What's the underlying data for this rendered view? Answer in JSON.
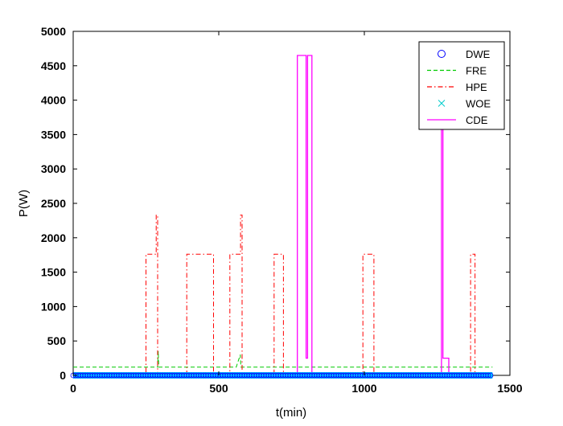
{
  "chart_data": {
    "type": "line",
    "xlabel": "t(min)",
    "ylabel": "P(W)",
    "xlim": [
      0,
      1500
    ],
    "ylim": [
      0,
      5000
    ],
    "xticks": [
      0,
      500,
      1000,
      1500
    ],
    "yticks": [
      0,
      500,
      1000,
      1500,
      2000,
      2500,
      3000,
      3500,
      4000,
      4500,
      5000
    ],
    "xtick_labels": [
      "0",
      "500",
      "1000",
      "1500"
    ],
    "ytick_labels": [
      "0",
      "500",
      "1000",
      "1500",
      "2000",
      "2500",
      "3000",
      "3500",
      "4000",
      "4500",
      "5000"
    ],
    "legend_position": "top-right",
    "grid": false,
    "series": [
      {
        "name": "DWE",
        "color": "#0000ff",
        "style": "markers-circle",
        "note_values": "constant 0 W across 0–1440 min",
        "x": [
          0,
          1440
        ],
        "y": [
          0,
          0
        ]
      },
      {
        "name": "FRE",
        "color": "#00cc00",
        "style": "dashed",
        "x": [
          0,
          250,
          290,
          292,
          294,
          300,
          430,
          560,
          574,
          576,
          580,
          700,
          820,
          1000,
          1200,
          1380,
          1440
        ],
        "y": [
          120,
          120,
          120,
          350,
          120,
          120,
          120,
          120,
          300,
          120,
          120,
          120,
          120,
          120,
          120,
          120,
          120
        ]
      },
      {
        "name": "HPE",
        "color": "#ff0000",
        "style": "dash-dot",
        "x": [
          0,
          250,
          250,
          285,
          285,
          290,
          290,
          390,
          390,
          482,
          482,
          538,
          538,
          575,
          575,
          580,
          580,
          690,
          690,
          722,
          722,
          995,
          995,
          1033,
          1033,
          1365,
          1365,
          1380,
          1380,
          1440
        ],
        "y": [
          0,
          0,
          1760,
          1760,
          2330,
          2330,
          0,
          0,
          1760,
          1760,
          0,
          0,
          1760,
          1760,
          2330,
          2330,
          0,
          0,
          1760,
          1760,
          0,
          0,
          1760,
          1760,
          0,
          0,
          1760,
          1760,
          0,
          0
        ]
      },
      {
        "name": "WOE",
        "color": "#00cccc",
        "style": "markers-x",
        "note_values": "constant 0 W across 0–1440 min",
        "x": [
          0,
          1440
        ],
        "y": [
          0,
          0
        ]
      },
      {
        "name": "CDE",
        "color": "#ff00ff",
        "style": "solid",
        "x": [
          0,
          770,
          770,
          800,
          800,
          805,
          805,
          820,
          820,
          1265,
          1265,
          1270,
          1270,
          1275,
          1275,
          1290,
          1290,
          1440
        ],
        "y": [
          0,
          0,
          4650,
          4650,
          250,
          250,
          4650,
          4650,
          0,
          0,
          3700,
          3700,
          250,
          250,
          250,
          250,
          0,
          0
        ]
      }
    ]
  }
}
